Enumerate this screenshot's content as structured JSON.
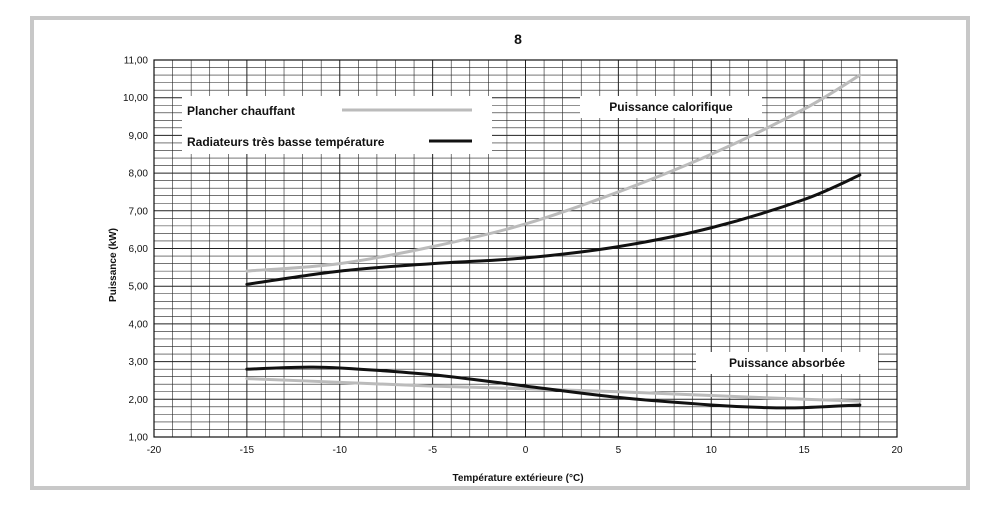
{
  "chart_data": {
    "type": "line",
    "title": "8",
    "xlabel": "Température extérieure (°C)",
    "ylabel": "Puissance (kW)",
    "xlim": [
      -20,
      20
    ],
    "ylim": [
      1,
      11
    ],
    "grid": true,
    "x_ticks": [
      "-20",
      "-15",
      "-10",
      "-5",
      "0",
      "5",
      "10",
      "15",
      "20"
    ],
    "y_ticks": [
      "1,00",
      "2,00",
      "3,00",
      "4,00",
      "5,00",
      "6,00",
      "7,00",
      "8,00",
      "9,00",
      "10,00",
      "11,00"
    ],
    "legend": [
      {
        "label": "Plancher chauffant",
        "color": "#bbbbbb"
      },
      {
        "label": "Radiateurs très basse température",
        "color": "#111111"
      }
    ],
    "annotations": {
      "heating": "Puissance calorifique",
      "absorbed": "Puissance absorbée"
    },
    "series": [
      {
        "name": "Plancher chauffant",
        "group": "Puissance calorifique",
        "color": "#bbbbbb",
        "x": [
          -15,
          -10,
          -5,
          0,
          5,
          10,
          15,
          18
        ],
        "y": [
          5.4,
          5.6,
          6.05,
          6.65,
          7.5,
          8.5,
          9.7,
          10.6
        ]
      },
      {
        "name": "Radiateurs très basse température",
        "group": "Puissance calorifique",
        "color": "#111111",
        "x": [
          -15,
          -10,
          -5,
          0,
          5,
          10,
          15,
          18
        ],
        "y": [
          5.05,
          5.4,
          5.6,
          5.75,
          6.05,
          6.55,
          7.3,
          7.95
        ]
      },
      {
        "name": "Plancher chauffant",
        "group": "Puissance absorbée",
        "color": "#bbbbbb",
        "x": [
          -15,
          -10,
          -5,
          0,
          5,
          10,
          15,
          18
        ],
        "y": [
          2.55,
          2.45,
          2.35,
          2.28,
          2.2,
          2.1,
          2.0,
          1.95
        ]
      },
      {
        "name": "Radiateurs très basse température",
        "group": "Puissance absorbée",
        "color": "#111111",
        "x": [
          -15,
          -12,
          -10,
          -5,
          0,
          5,
          10,
          13,
          15,
          18
        ],
        "y": [
          2.8,
          2.85,
          2.83,
          2.65,
          2.35,
          2.05,
          1.85,
          1.78,
          1.78,
          1.85
        ]
      }
    ]
  }
}
